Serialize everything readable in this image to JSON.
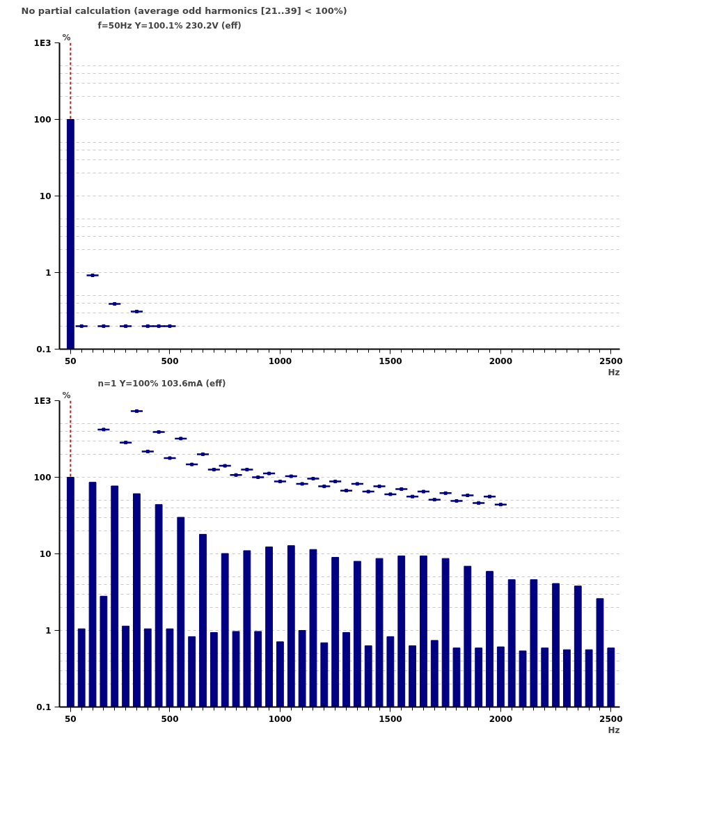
{
  "chart_data": [
    {
      "type": "bar",
      "title": "No partial calculation (average odd harmonics [21..39] < 100%)",
      "subtitle": "f=50Hz   Y=100.1%   230.2V (eff)",
      "ylabel": "%",
      "xlabel": "Hz",
      "log": true,
      "grid": "y",
      "xlim": [
        0,
        2540
      ],
      "ylim": [
        0.1,
        1000
      ],
      "xticks": [
        50,
        {
          "value": 100,
          "label": null
        },
        {
          "value": 150,
          "label": null
        },
        {
          "value": 200,
          "label": null
        },
        {
          "value": 250,
          "label": null
        },
        {
          "value": 300,
          "label": null
        },
        {
          "value": 350,
          "label": null
        },
        {
          "value": 400,
          "label": null
        },
        {
          "value": 450,
          "label": null
        },
        500,
        {
          "value": 550,
          "label": null
        },
        {
          "value": 600,
          "label": null
        },
        {
          "value": 650,
          "label": null
        },
        {
          "value": 700,
          "label": null
        },
        {
          "value": 750,
          "label": null
        },
        {
          "value": 800,
          "label": null
        },
        {
          "value": 850,
          "label": null
        },
        {
          "value": 900,
          "label": null
        },
        {
          "value": 950,
          "label": null
        },
        1000,
        {
          "value": 1050,
          "label": null
        },
        {
          "value": 1100,
          "label": null
        },
        {
          "value": 1150,
          "label": null
        },
        {
          "value": 1200,
          "label": null
        },
        {
          "value": 1250,
          "label": null
        },
        {
          "value": 1300,
          "label": null
        },
        {
          "value": 1350,
          "label": null
        },
        {
          "value": 1400,
          "label": null
        },
        {
          "value": 1450,
          "label": null
        },
        1500,
        {
          "value": 1550,
          "label": null
        },
        {
          "value": 1600,
          "label": null
        },
        {
          "value": 1650,
          "label": null
        },
        {
          "value": 1700,
          "label": null
        },
        {
          "value": 1750,
          "label": null
        },
        {
          "value": 1800,
          "label": null
        },
        {
          "value": 1850,
          "label": null
        },
        {
          "value": 1900,
          "label": null
        },
        {
          "value": 1950,
          "label": null
        },
        2000,
        {
          "value": 2050,
          "label": null
        },
        {
          "value": 2100,
          "label": null
        },
        {
          "value": 2150,
          "label": null
        },
        {
          "value": 2200,
          "label": null
        },
        {
          "value": 2250,
          "label": null
        },
        {
          "value": 2300,
          "label": null
        },
        {
          "value": 2350,
          "label": null
        },
        {
          "value": 2400,
          "label": null
        },
        {
          "value": 2450,
          "label": null
        },
        2500
      ],
      "yticks": [
        0.1,
        {
          "value": 0.2,
          "label": null
        },
        {
          "value": 0.3,
          "label": null
        },
        {
          "value": 0.4,
          "label": null
        },
        {
          "value": 0.5,
          "label": null
        },
        1,
        {
          "value": 2,
          "label": null
        },
        {
          "value": 3,
          "label": null
        },
        {
          "value": 4,
          "label": null
        },
        {
          "value": 5,
          "label": null
        },
        10,
        {
          "value": 20,
          "label": null
        },
        {
          "value": 30,
          "label": null
        },
        {
          "value": 40,
          "label": null
        },
        {
          "value": 50,
          "label": null
        },
        100,
        {
          "value": 200,
          "label": null
        },
        {
          "value": 300,
          "label": null
        },
        {
          "value": 400,
          "label": null
        },
        {
          "value": 500,
          "label": null
        },
        {
          "value": 1000,
          "label": "1E3"
        }
      ],
      "ref_lines": [
        {
          "axis": "x",
          "value": 50,
          "label": null,
          "color": "#b22222",
          "line_style": "dashed"
        }
      ],
      "series": [
        {
          "color": "#000080",
          "x": [
            50
          ],
          "values": [
            100
          ]
        },
        {
          "type": "scatter",
          "marker": "square",
          "color": "#000080",
          "x": [
            100,
            150,
            200,
            250,
            300,
            350,
            400,
            450,
            500
          ],
          "values": [
            0.2,
            0.92,
            0.2,
            0.39,
            0.2,
            0.31,
            0.2,
            0.2,
            0.2
          ],
          "xerrors": [
            27,
            27,
            27,
            27,
            27,
            27,
            27,
            27,
            27
          ]
        }
      ]
    },
    {
      "type": "bar",
      "subtitle": "n=1   Y=100%   103.6mA (eff)",
      "ylabel": "%",
      "xlabel": "Hz",
      "log": true,
      "grid": "y",
      "xlim": [
        0,
        2540
      ],
      "ylim": [
        0.1,
        1000
      ],
      "xticks": [
        50,
        {
          "value": 100,
          "label": null
        },
        {
          "value": 150,
          "label": null
        },
        {
          "value": 200,
          "label": null
        },
        {
          "value": 250,
          "label": null
        },
        {
          "value": 300,
          "label": null
        },
        {
          "value": 350,
          "label": null
        },
        {
          "value": 400,
          "label": null
        },
        {
          "value": 450,
          "label": null
        },
        500,
        {
          "value": 550,
          "label": null
        },
        {
          "value": 600,
          "label": null
        },
        {
          "value": 650,
          "label": null
        },
        {
          "value": 700,
          "label": null
        },
        {
          "value": 750,
          "label": null
        },
        {
          "value": 800,
          "label": null
        },
        {
          "value": 850,
          "label": null
        },
        {
          "value": 900,
          "label": null
        },
        {
          "value": 950,
          "label": null
        },
        1000,
        {
          "value": 1050,
          "label": null
        },
        {
          "value": 1100,
          "label": null
        },
        {
          "value": 1150,
          "label": null
        },
        {
          "value": 1200,
          "label": null
        },
        {
          "value": 1250,
          "label": null
        },
        {
          "value": 1300,
          "label": null
        },
        {
          "value": 1350,
          "label": null
        },
        {
          "value": 1400,
          "label": null
        },
        {
          "value": 1450,
          "label": null
        },
        1500,
        {
          "value": 1550,
          "label": null
        },
        {
          "value": 1600,
          "label": null
        },
        {
          "value": 1650,
          "label": null
        },
        {
          "value": 1700,
          "label": null
        },
        {
          "value": 1750,
          "label": null
        },
        {
          "value": 1800,
          "label": null
        },
        {
          "value": 1850,
          "label": null
        },
        {
          "value": 1900,
          "label": null
        },
        {
          "value": 1950,
          "label": null
        },
        2000,
        {
          "value": 2050,
          "label": null
        },
        {
          "value": 2100,
          "label": null
        },
        {
          "value": 2150,
          "label": null
        },
        {
          "value": 2200,
          "label": null
        },
        {
          "value": 2250,
          "label": null
        },
        {
          "value": 2300,
          "label": null
        },
        {
          "value": 2350,
          "label": null
        },
        {
          "value": 2400,
          "label": null
        },
        {
          "value": 2450,
          "label": null
        },
        2500
      ],
      "yticks": [
        0.1,
        {
          "value": 0.2,
          "label": null
        },
        {
          "value": 0.3,
          "label": null
        },
        {
          "value": 0.4,
          "label": null
        },
        {
          "value": 0.5,
          "label": null
        },
        1,
        {
          "value": 2,
          "label": null
        },
        {
          "value": 3,
          "label": null
        },
        {
          "value": 4,
          "label": null
        },
        {
          "value": 5,
          "label": null
        },
        10,
        {
          "value": 20,
          "label": null
        },
        {
          "value": 30,
          "label": null
        },
        {
          "value": 40,
          "label": null
        },
        {
          "value": 50,
          "label": null
        },
        100,
        {
          "value": 200,
          "label": null
        },
        {
          "value": 300,
          "label": null
        },
        {
          "value": 400,
          "label": null
        },
        {
          "value": 500,
          "label": null
        },
        {
          "value": 1000,
          "label": "1E3"
        }
      ],
      "ref_lines": [
        {
          "axis": "x",
          "value": 50,
          "label": null,
          "color": "#b22222",
          "line_style": "dashed"
        }
      ],
      "series": [
        {
          "color": "#000080",
          "x": [
            50,
            100,
            150,
            200,
            250,
            300,
            350,
            400,
            450,
            500,
            550,
            600,
            650,
            700,
            750,
            800,
            850,
            900,
            950,
            1000,
            1050,
            1100,
            1150,
            1200,
            1250,
            1300,
            1350,
            1400,
            1450,
            1500,
            1550,
            1600,
            1650,
            1700,
            1750,
            1800,
            1850,
            1900,
            1950,
            2000,
            2050,
            2100,
            2150,
            2200,
            2250,
            2300,
            2350,
            2400,
            2450,
            2500
          ],
          "values": [
            100,
            1.05,
            86,
            2.8,
            77,
            1.14,
            61,
            1.05,
            44,
            1.05,
            30,
            0.83,
            18,
            0.94,
            10.1,
            0.97,
            11,
            0.97,
            12.3,
            0.71,
            12.8,
            1.0,
            11.4,
            0.69,
            9.0,
            0.94,
            8.0,
            0.63,
            8.7,
            0.83,
            9.4,
            0.63,
            9.4,
            0.74,
            8.7,
            0.59,
            6.9,
            0.59,
            5.9,
            0.61,
            4.6,
            0.54,
            4.6,
            0.59,
            4.1,
            0.56,
            3.8,
            0.56,
            2.6,
            0.59
          ]
        },
        {
          "type": "scatter",
          "marker": "square",
          "color": "#000080",
          "xerrors": [
            27,
            27,
            27,
            27,
            27,
            27,
            27,
            27,
            27,
            27,
            27,
            27,
            27,
            27,
            27,
            27,
            27,
            27,
            27,
            27,
            27,
            27,
            27,
            27,
            27,
            27,
            27,
            27,
            27,
            27,
            27,
            27,
            27,
            27,
            27,
            27
          ],
          "x": [
            200,
            300,
            350,
            400,
            450,
            500,
            550,
            600,
            650,
            700,
            750,
            800,
            850,
            900,
            950,
            1000,
            1050,
            1100,
            1150,
            1200,
            1250,
            1300,
            1350,
            1400,
            1450,
            1500,
            1550,
            1600,
            1650,
            1700,
            1750,
            1800,
            1850,
            1900,
            1950,
            2000
          ],
          "values": [
            420,
            284,
            730,
            217,
            390,
            178,
            320,
            147,
            200,
            126,
            141,
            107,
            126,
            100,
            112,
            88,
            103,
            82,
            96,
            76,
            88,
            67,
            82,
            65,
            76,
            60,
            70,
            56,
            65,
            51,
            62,
            49,
            58,
            46,
            56,
            44
          ]
        }
      ]
    }
  ]
}
